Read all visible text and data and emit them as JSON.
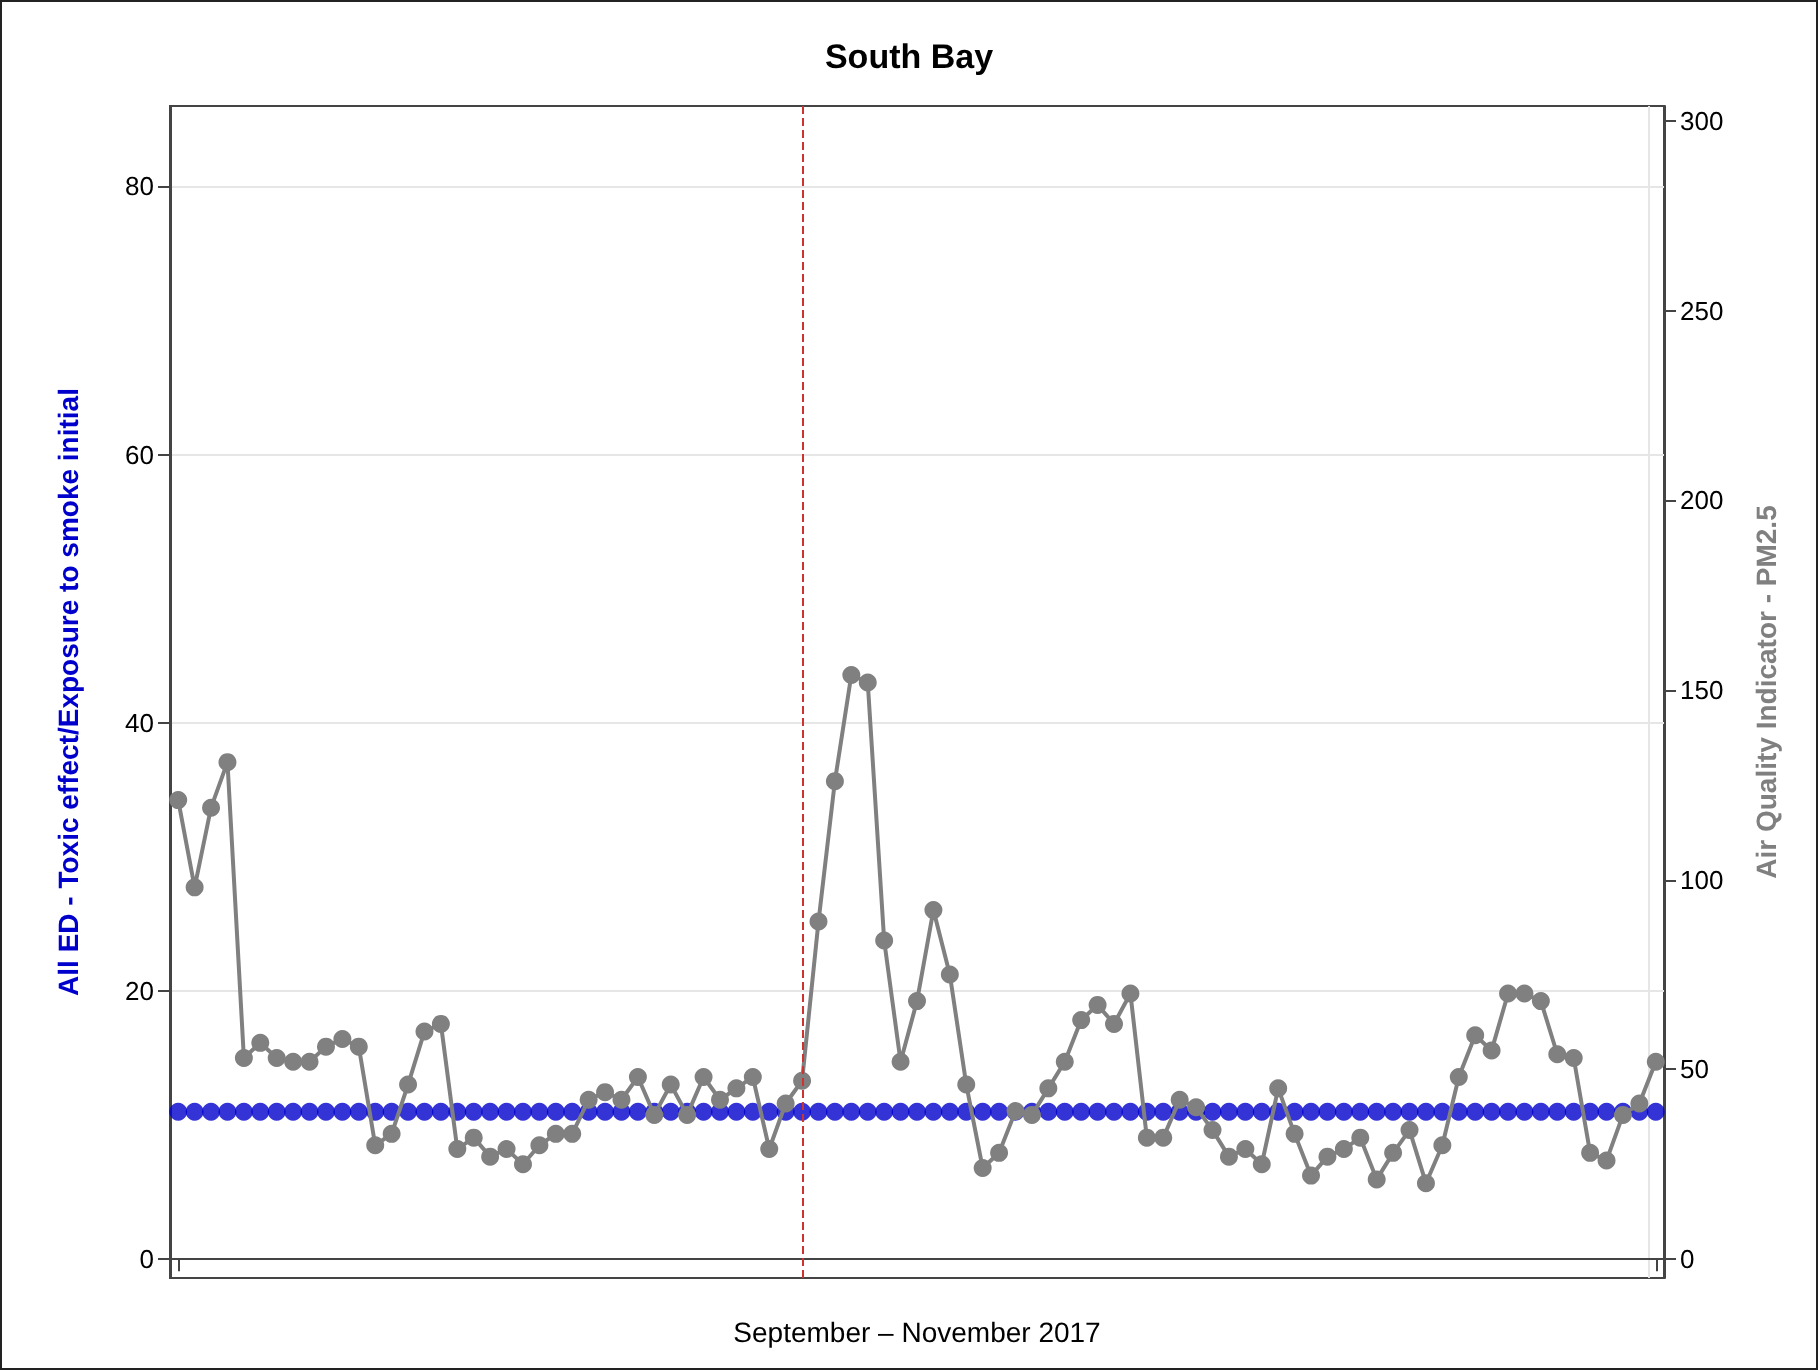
{
  "chart_data": {
    "type": "line",
    "title": "South Bay",
    "xlabel": "September – November 2017",
    "ylabel": "All ED - Toxic effect/Exposure to smoke initial",
    "y2label": "Air Quality Indicator - PM2.5",
    "categories": [
      null,
      null,
      null,
      null,
      null,
      null,
      null,
      null,
      null,
      null,
      null,
      null,
      null,
      null,
      null,
      null,
      null,
      null,
      null,
      null,
      null,
      null,
      null,
      null,
      null,
      null,
      null,
      null,
      null,
      null,
      null,
      null,
      null,
      null,
      null,
      null,
      null,
      null,
      null,
      null,
      null,
      null,
      null,
      null,
      null,
      null,
      null,
      null,
      null,
      null,
      null,
      null,
      null,
      null,
      null,
      null,
      null,
      null,
      null,
      null,
      null,
      null,
      null,
      null,
      null,
      null,
      null,
      null,
      null,
      null,
      null,
      null,
      null,
      null,
      null,
      null,
      null,
      null,
      null,
      null,
      null,
      null,
      null,
      null,
      null,
      null,
      null,
      null,
      null,
      null,
      null
    ],
    "series": [
      {
        "type": "scatter",
        "color": "#0000cc",
        "values": [
          11,
          11,
          11,
          11,
          11,
          11,
          11,
          11,
          11,
          11,
          11,
          11,
          11,
          11,
          11,
          11,
          11,
          11,
          11,
          11,
          11,
          11,
          11,
          11,
          11,
          11,
          11,
          11,
          11,
          11,
          11,
          11,
          11,
          11,
          11,
          11,
          11,
          11,
          11,
          11,
          11,
          11,
          11,
          11,
          11,
          11,
          11,
          11,
          11,
          11,
          11,
          11,
          11,
          11,
          11,
          11,
          11,
          11,
          11,
          11,
          11,
          11,
          11,
          11,
          11,
          11,
          11,
          11,
          11,
          11,
          11,
          11,
          11,
          11,
          11,
          11,
          11,
          11,
          11,
          11,
          11,
          11,
          11,
          11,
          11,
          11,
          11,
          11,
          11,
          11,
          11
        ]
      },
      {
        "color": "#808080",
        "axis": "y2",
        "values": [
          121,
          98,
          119,
          131,
          53,
          57,
          53,
          52,
          52,
          56,
          58,
          56,
          30,
          33,
          46,
          60,
          62,
          29,
          32,
          27,
          29,
          25,
          30,
          33,
          33,
          42,
          44,
          42,
          48,
          38,
          46,
          38,
          48,
          42,
          45,
          48,
          29,
          41,
          47,
          89,
          126,
          154,
          152,
          84,
          52,
          68,
          92,
          75,
          46,
          24,
          28,
          39,
          38,
          45,
          52,
          63,
          67,
          62,
          70,
          32,
          32,
          42,
          40,
          34,
          27,
          29,
          25,
          45,
          33,
          22,
          27,
          29,
          32,
          21,
          28,
          34,
          20,
          30,
          48,
          59,
          55,
          70,
          70,
          68,
          54,
          53,
          28,
          26,
          38,
          41,
          52
        ]
      }
    ],
    "ylim": [
      -1.4,
      86
    ],
    "yticks": [
      0,
      20,
      40,
      60,
      80
    ],
    "y2lim": [
      -5,
      304
    ],
    "y2ticks": [
      0,
      50,
      100,
      150,
      200,
      250,
      300
    ],
    "marker": "circle",
    "grid": true
  }
}
